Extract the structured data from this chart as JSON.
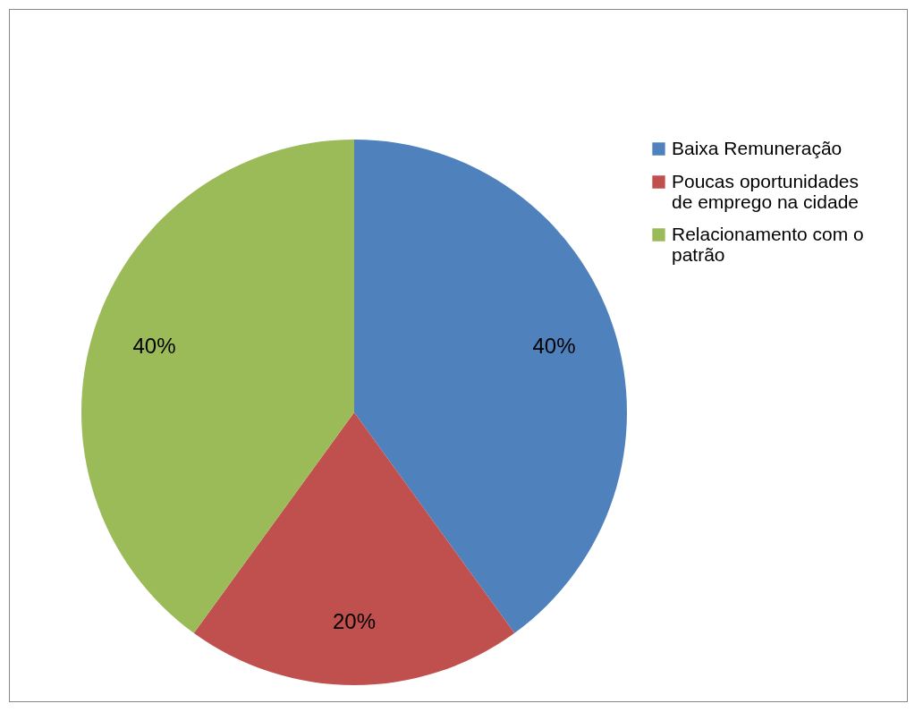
{
  "chart_data": {
    "type": "pie",
    "categories": [
      "Baixa Remuneração",
      "Poucas oportunidades de emprego na cidade",
      "Relacionamento com o patrão"
    ],
    "values": [
      40,
      20,
      40
    ],
    "colors": [
      "#4f81bd",
      "#c0504d",
      "#9bbb59"
    ],
    "value_labels": [
      "40%",
      "20%",
      "40%"
    ],
    "legend": "right"
  }
}
